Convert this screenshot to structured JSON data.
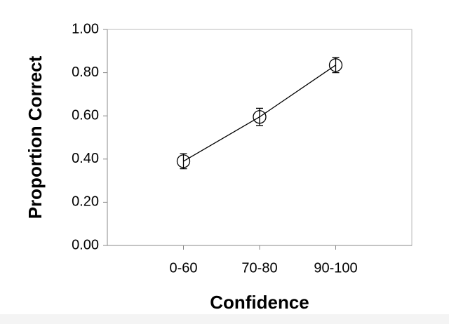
{
  "chart_data": {
    "type": "line",
    "x_label": "Confidence",
    "y_label": "Proportion Correct",
    "categories": [
      "0-60",
      "70-80",
      "90-100"
    ],
    "values": [
      0.39,
      0.595,
      0.835
    ],
    "errors": [
      0.035,
      0.04,
      0.035
    ],
    "color": "#000000",
    "ylim": [
      0,
      1
    ],
    "yticks": [
      {
        "value": 0,
        "label": "0.00"
      },
      {
        "value": 0.2,
        "label": "0.20"
      },
      {
        "value": 0.4,
        "label": "0.40"
      },
      {
        "value": 0.6,
        "label": "0.60"
      },
      {
        "value": 0.8,
        "label": "0.80"
      },
      {
        "value": 1,
        "label": "1.00"
      }
    ]
  }
}
